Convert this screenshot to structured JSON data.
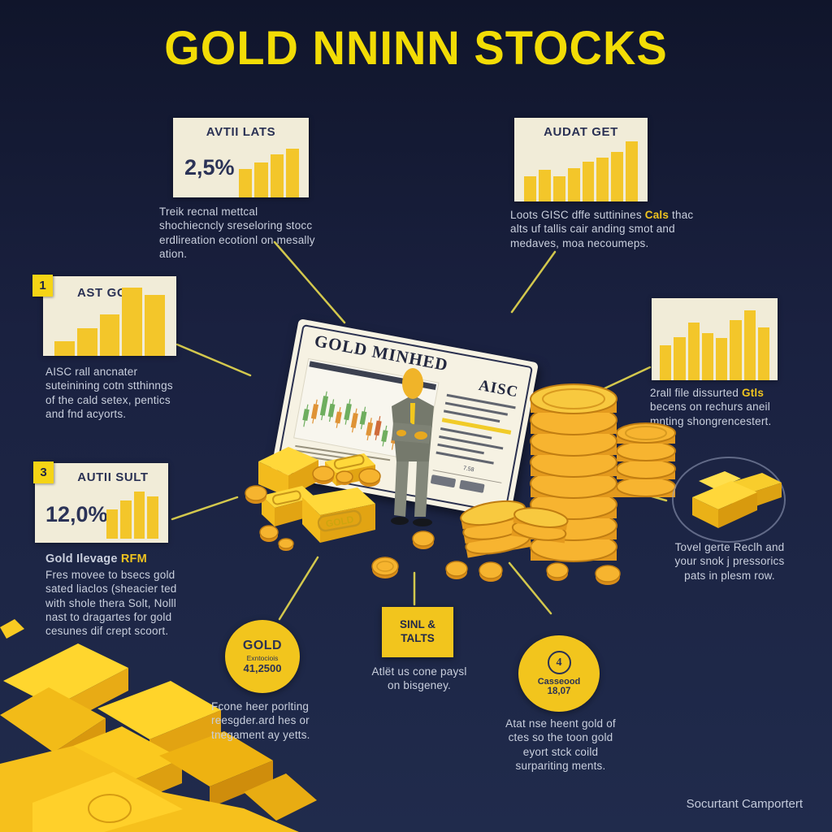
{
  "title": "GOLD NNINN STOCKS",
  "panels": {
    "avtii": {
      "header": "AVTII LATS",
      "value": "2,5%",
      "bars": [
        58,
        72,
        89,
        100
      ],
      "caption": "Treik recnal mettcal shochiecncly sreseloring stocc erdlireation ecotionl on mesally ation."
    },
    "audat": {
      "header": "AUDAT GET",
      "bars": [
        42,
        53,
        42,
        56,
        66,
        73,
        83,
        100
      ],
      "caption_pre": "Loots GISC dffe suttinines ",
      "caption_hl": "Cals",
      "caption_post": " thac alts uf tallis cair anding smot and medaves, moa necoumeps."
    },
    "ast": {
      "badge": "1",
      "header": "AST GOT",
      "bars": [
        22,
        41,
        61,
        100,
        89
      ],
      "caption": "AISC rall ancnater suteinining cotn stthinngs of the cald setex, pentics and fnd acyorts."
    },
    "autii": {
      "badge": "3",
      "header": "AUTII SULT",
      "value": "12,0%",
      "bars": [
        62,
        81,
        100,
        89
      ],
      "caption_lead_pre": "Gold Ilevage ",
      "caption_lead_hl": "RFM",
      "caption": "Fres movee to bsecs gold sated liaclos (sheacier ted with shole thera Solt, Nolll nast to dragartes for gold cesunes dif crept scoort."
    },
    "right": {
      "bars": [
        50,
        62,
        83,
        67,
        60,
        86,
        100,
        76
      ],
      "caption_pre": "2rall file dissurted ",
      "caption_hl": "Gtls",
      "caption_post": " becens on rechurs aneil mnting shongrencestert."
    }
  },
  "certificate": {
    "title": "GOLD MINHED",
    "corner_label": "AISC",
    "small_note": "7.58",
    "bar_stamp": "GOLD"
  },
  "nodes": {
    "gold_circle": {
      "title": "GOLD",
      "subtitle": "Exntociois",
      "value": "41,2500",
      "caption": "Fcone heer porlting reesgder.ard hes or tnegament ay yetts."
    },
    "sinl_box": {
      "label": "SINL & TALTS",
      "caption": "Atlët us cone paysl on bisgeney."
    },
    "four_circle": {
      "number": "4",
      "subtitle": "Casseood",
      "value": "18,07",
      "caption": "Atat nse heent gold of ctes so the toon gold eyort stck coild surpariting ments."
    },
    "bars_circle": {
      "caption": "Tovel gerte Reclh and your snok j pressorics pats in plesm row."
    }
  },
  "footer": "Socurtant Camportert",
  "colors": {
    "background_top": "#10152b",
    "background_bottom": "#202b4c",
    "accent_yellow": "#f2dc06",
    "bar_yellow": "#f3c62a",
    "panel_cream": "#f1ecd8",
    "text_light": "#c9cfdd",
    "text_dark": "#2a3154",
    "gold": "#ffd42a"
  }
}
